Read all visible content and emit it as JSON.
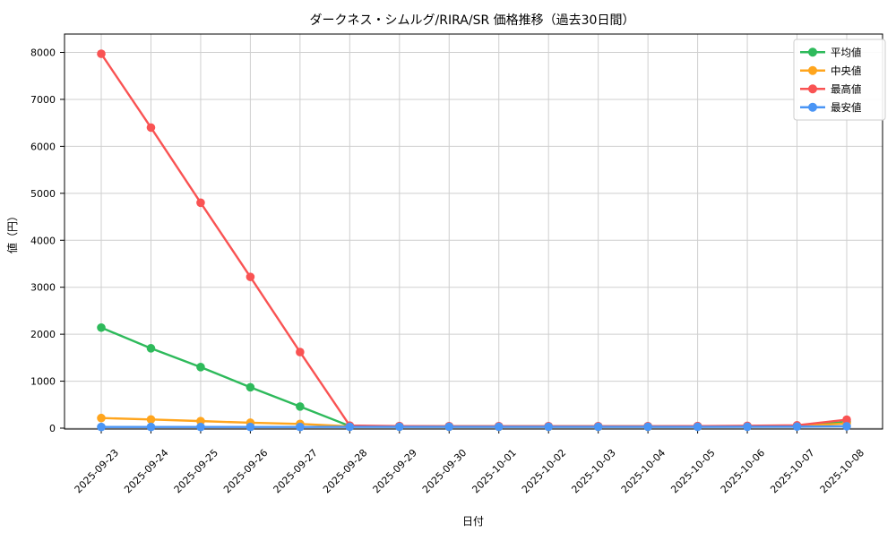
{
  "title": "ダークネス・シムルグ/RIRA/SR 価格推移（過去30日間）",
  "chart_data": {
    "type": "line",
    "title": "ダークネス・シムルグ/RIRA/SR 価格推移（過去30日間）",
    "xlabel": "日付",
    "ylabel": "値（円）",
    "x": [
      "2025-09-23",
      "2025-09-24",
      "2025-09-25",
      "2025-09-26",
      "2025-09-27",
      "2025-09-28",
      "2025-09-29",
      "2025-09-30",
      "2025-10-01",
      "2025-10-02",
      "2025-10-03",
      "2025-10-04",
      "2025-10-05",
      "2025-10-06",
      "2025-10-07",
      "2025-10-08"
    ],
    "series": [
      {
        "name": "平均値",
        "color": "#2eba5b",
        "values": [
          2140,
          1700,
          1300,
          870,
          460,
          45,
          40,
          38,
          38,
          38,
          38,
          38,
          40,
          42,
          50,
          130
        ]
      },
      {
        "name": "中央値",
        "color": "#ffa51d",
        "values": [
          215,
          185,
          150,
          115,
          90,
          38,
          32,
          30,
          30,
          30,
          30,
          30,
          32,
          35,
          42,
          100
        ]
      },
      {
        "name": "最高値",
        "color": "#f95353",
        "values": [
          7970,
          6400,
          4800,
          3220,
          1620,
          55,
          45,
          42,
          42,
          42,
          42,
          42,
          45,
          50,
          60,
          180
        ]
      },
      {
        "name": "最安値",
        "color": "#4a95f5",
        "values": [
          25,
          25,
          25,
          25,
          25,
          28,
          28,
          28,
          28,
          28,
          28,
          28,
          28,
          30,
          33,
          40
        ]
      }
    ],
    "ylim": [
      0,
      8000
    ],
    "yticks": [
      0,
      1000,
      2000,
      3000,
      4000,
      5000,
      6000,
      7000,
      8000
    ],
    "grid": true,
    "legend_position": "upper right"
  },
  "colors": {
    "background": "#ffffff",
    "grid": "#cfcfcf",
    "axis": "#000000",
    "legend_border": "#cccccc"
  }
}
